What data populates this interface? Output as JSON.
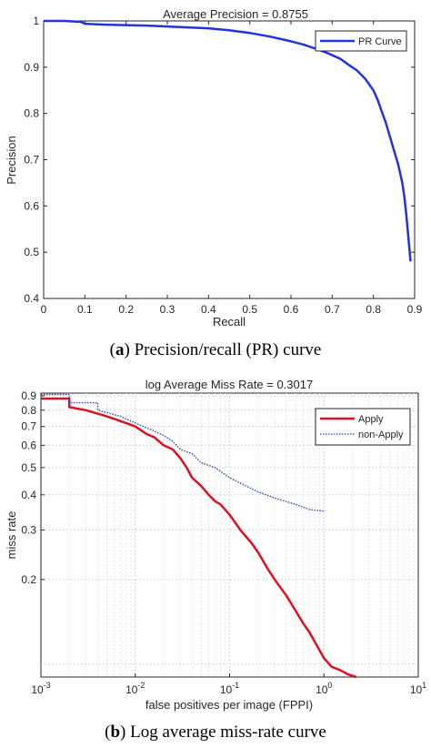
{
  "chart_data": [
    {
      "type": "line",
      "title": "Average Precision = 0.8755",
      "xlabel": "Recall",
      "ylabel": "Precision",
      "xlim": [
        0,
        0.9
      ],
      "ylim": [
        0.4,
        1.0
      ],
      "xticks": [
        "0",
        "0.1",
        "0.2",
        "0.3",
        "0.4",
        "0.5",
        "0.6",
        "0.7",
        "0.8",
        "0.9"
      ],
      "yticks": [
        "0.4",
        "0.5",
        "0.6",
        "0.7",
        "0.8",
        "0.9",
        "1"
      ],
      "grid": false,
      "legend_position": "top-right",
      "colors": {
        "series": "#2233dd"
      },
      "series": [
        {
          "name": "PR Curve",
          "x": [
            0,
            0.05,
            0.09,
            0.1,
            0.15,
            0.2,
            0.25,
            0.3,
            0.35,
            0.4,
            0.45,
            0.5,
            0.55,
            0.6,
            0.63,
            0.66,
            0.69,
            0.72,
            0.74,
            0.76,
            0.78,
            0.8,
            0.81,
            0.82,
            0.83,
            0.84,
            0.85,
            0.86,
            0.87,
            0.875,
            0.88,
            0.885,
            0.89
          ],
          "y": [
            1.0,
            1.0,
            0.998,
            0.994,
            0.992,
            0.991,
            0.99,
            0.988,
            0.986,
            0.984,
            0.98,
            0.974,
            0.966,
            0.956,
            0.949,
            0.94,
            0.93,
            0.918,
            0.905,
            0.893,
            0.875,
            0.85,
            0.83,
            0.805,
            0.78,
            0.75,
            0.72,
            0.69,
            0.65,
            0.62,
            0.58,
            0.53,
            0.48
          ]
        }
      ],
      "caption": {
        "label": "a",
        "text": " Precision/recall (PR) curve"
      }
    },
    {
      "type": "line",
      "title": "log Average Miss Rate = 0.3017",
      "xlabel": "false positives per image (FPPI)",
      "ylabel": "miss rate",
      "x_scale": "log",
      "y_scale": "log",
      "xlim": [
        0.001,
        10
      ],
      "ylim": [
        0.09,
        0.92
      ],
      "xticks": [
        {
          "base": "10",
          "exp": "-3"
        },
        {
          "base": "10",
          "exp": "-2"
        },
        {
          "base": "10",
          "exp": "-1"
        },
        {
          "base": "10",
          "exp": "0"
        },
        {
          "base": "10",
          "exp": "1"
        }
      ],
      "yticks": [
        "0.2",
        "0.3",
        "0.4",
        "0.5",
        "0.6",
        "0.7",
        "0.8",
        "0.9"
      ],
      "grid": true,
      "legend_position": "top-right",
      "series": [
        {
          "name": "Apply",
          "color": "#dd1122",
          "style": "solid",
          "x": [
            0.001,
            0.002,
            0.002,
            0.003,
            0.005,
            0.008,
            0.01,
            0.013,
            0.016,
            0.02,
            0.025,
            0.03,
            0.035,
            0.04,
            0.05,
            0.06,
            0.07,
            0.08,
            0.1,
            0.13,
            0.17,
            0.2,
            0.25,
            0.3,
            0.4,
            0.5,
            0.6,
            0.7,
            0.8,
            1.0,
            1.2,
            1.5,
            1.8,
            2.2
          ],
          "y": [
            0.88,
            0.88,
            0.82,
            0.8,
            0.76,
            0.72,
            0.7,
            0.66,
            0.64,
            0.6,
            0.58,
            0.54,
            0.5,
            0.46,
            0.43,
            0.4,
            0.38,
            0.37,
            0.34,
            0.3,
            0.27,
            0.25,
            0.22,
            0.2,
            0.175,
            0.155,
            0.14,
            0.13,
            0.12,
            0.105,
            0.098,
            0.095,
            0.092,
            0.09
          ]
        },
        {
          "name": "non-Apply",
          "color": "#2244cc",
          "style": "dotted",
          "x": [
            0.001,
            0.002,
            0.002,
            0.004,
            0.004,
            0.007,
            0.01,
            0.015,
            0.02,
            0.025,
            0.03,
            0.04,
            0.05,
            0.07,
            0.1,
            0.15,
            0.2,
            0.3,
            0.5,
            0.7,
            1.0
          ],
          "y": [
            0.91,
            0.91,
            0.85,
            0.85,
            0.8,
            0.76,
            0.72,
            0.68,
            0.65,
            0.62,
            0.58,
            0.56,
            0.52,
            0.5,
            0.46,
            0.43,
            0.41,
            0.39,
            0.37,
            0.355,
            0.35
          ]
        }
      ],
      "caption": {
        "label": "b",
        "text": " Log average miss-rate curve"
      }
    }
  ]
}
